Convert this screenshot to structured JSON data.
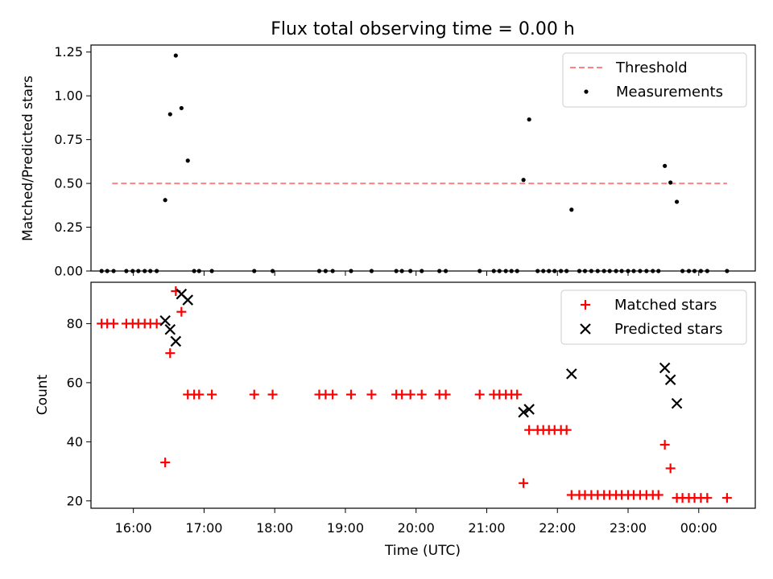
{
  "chart_data": [
    {
      "type": "scatter",
      "title": "Flux total observing time = 0.00 h",
      "ylabel": "Matched/Predicted stars",
      "xlabel": "",
      "ylim": [
        0,
        1.29
      ],
      "yticks": [
        "0.00",
        "0.25",
        "0.50",
        "0.75",
        "1.00",
        "1.25"
      ],
      "xlim": [
        15.4,
        24.8
      ],
      "legend_position": "top-right",
      "grid": false,
      "threshold": {
        "label": "Threshold",
        "value": 0.5,
        "x_range": [
          15.7,
          24.4
        ],
        "color": "#ff8080"
      },
      "series": [
        {
          "name": "Measurements",
          "color": "#000000",
          "x": [
            15.55,
            15.63,
            15.72,
            15.9,
            15.99,
            16.07,
            16.16,
            16.24,
            16.33,
            16.45,
            16.52,
            16.6,
            16.68,
            16.77,
            16.86,
            16.93,
            17.11,
            17.71,
            17.97,
            18.63,
            18.72,
            18.82,
            19.08,
            19.37,
            19.72,
            19.8,
            19.92,
            20.08,
            20.33,
            20.42,
            20.9,
            21.1,
            21.18,
            21.27,
            21.35,
            21.43,
            21.52,
            21.6,
            21.72,
            21.8,
            21.88,
            21.96,
            22.05,
            22.13,
            22.2,
            22.31,
            22.39,
            22.48,
            22.57,
            22.66,
            22.74,
            22.83,
            22.91,
            23.0,
            23.08,
            23.17,
            23.26,
            23.35,
            23.43,
            23.52,
            23.6,
            23.69,
            23.77,
            23.86,
            23.94,
            24.03,
            24.12,
            24.4
          ],
          "y": [
            0,
            0,
            0,
            0,
            0,
            0,
            0,
            0,
            0,
            0.405,
            0.895,
            1.23,
            0.93,
            0.63,
            0,
            0,
            0,
            0,
            0,
            0,
            0,
            0,
            0,
            0,
            0,
            0,
            0,
            0,
            0,
            0,
            0,
            0,
            0,
            0,
            0,
            0,
            0.52,
            0.865,
            0,
            0,
            0,
            0,
            0,
            0,
            0.35,
            0,
            0,
            0,
            0,
            0,
            0,
            0,
            0,
            0,
            0,
            0,
            0,
            0,
            0,
            0.6,
            0.505,
            0.395,
            0,
            0,
            0,
            0,
            0,
            0
          ]
        }
      ]
    },
    {
      "type": "scatter",
      "title": "",
      "ylabel": "Count",
      "xlabel": "Time (UTC)",
      "ylim": [
        17.5,
        94
      ],
      "yticks": [
        "20",
        "40",
        "60",
        "80"
      ],
      "xlim": [
        15.4,
        24.8
      ],
      "xticks": [
        "16:00",
        "17:00",
        "18:00",
        "19:00",
        "20:00",
        "21:00",
        "22:00",
        "23:00",
        "00:00"
      ],
      "legend_position": "top-right",
      "grid": false,
      "series": [
        {
          "name": "Matched stars",
          "marker": "plus",
          "color": "#ff0000",
          "x": [
            15.55,
            15.63,
            15.72,
            15.9,
            15.99,
            16.07,
            16.16,
            16.24,
            16.33,
            16.45,
            16.52,
            16.6,
            16.68,
            16.77,
            16.86,
            16.93,
            17.11,
            17.71,
            17.97,
            18.63,
            18.72,
            18.82,
            19.08,
            19.37,
            19.72,
            19.8,
            19.92,
            20.08,
            20.33,
            20.42,
            20.9,
            21.1,
            21.18,
            21.27,
            21.35,
            21.43,
            21.52,
            21.6,
            21.72,
            21.8,
            21.88,
            21.96,
            22.05,
            22.13,
            22.2,
            22.31,
            22.39,
            22.48,
            22.57,
            22.66,
            22.74,
            22.83,
            22.91,
            23.0,
            23.08,
            23.17,
            23.26,
            23.35,
            23.43,
            23.52,
            23.6,
            23.69,
            23.77,
            23.86,
            23.94,
            24.03,
            24.12,
            24.4
          ],
          "y": [
            80,
            80,
            80,
            80,
            80,
            80,
            80,
            80,
            80,
            33,
            70,
            91,
            84,
            56,
            56,
            56,
            56,
            56,
            56,
            56,
            56,
            56,
            56,
            56,
            56,
            56,
            56,
            56,
            56,
            56,
            56,
            56,
            56,
            56,
            56,
            56,
            26,
            44,
            44,
            44,
            44,
            44,
            44,
            44,
            22,
            22,
            22,
            22,
            22,
            22,
            22,
            22,
            22,
            22,
            22,
            22,
            22,
            22,
            22,
            39,
            31,
            21,
            21,
            21,
            21,
            21,
            21,
            21
          ]
        },
        {
          "name": "Predicted stars",
          "marker": "x",
          "color": "#000000",
          "x": [
            16.45,
            16.52,
            16.6,
            16.68,
            16.77,
            21.52,
            21.6,
            22.2,
            23.52,
            23.6,
            23.69
          ],
          "y": [
            81,
            78,
            74,
            90,
            88,
            50,
            51,
            63,
            65,
            61,
            53
          ]
        }
      ]
    }
  ]
}
